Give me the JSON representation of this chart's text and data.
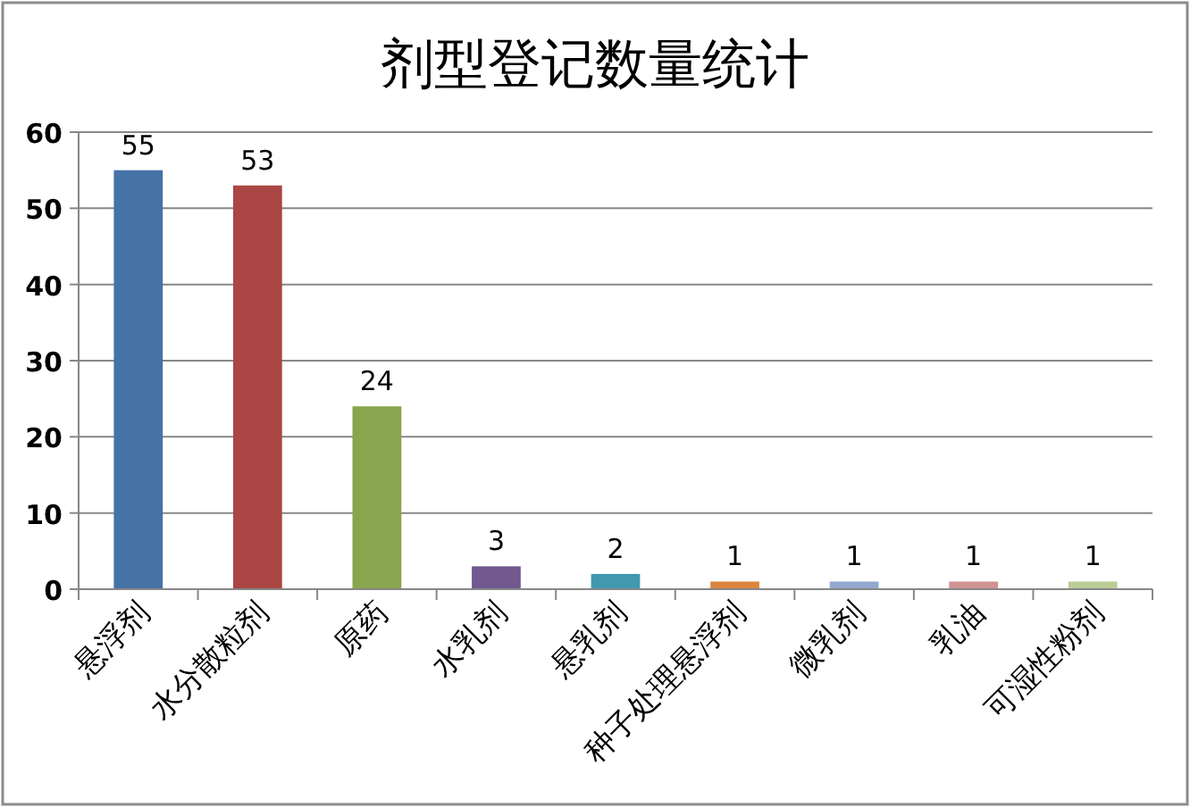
{
  "chart_data": {
    "type": "bar",
    "title": "剂型登记数量统计",
    "categories": [
      "悬浮剂",
      "水分散粒剂",
      "原药",
      "水乳剂",
      "悬乳剂",
      "种子处理悬浮剂",
      "微乳剂",
      "乳油",
      "可湿性粉剂"
    ],
    "values": [
      55,
      53,
      24,
      3,
      2,
      1,
      1,
      1,
      1
    ],
    "colors": [
      "#4572a7",
      "#aa4643",
      "#89a54e",
      "#71588f",
      "#4198af",
      "#db843d",
      "#93a9cf",
      "#d19392",
      "#b9cd96"
    ],
    "ylim": [
      0,
      60
    ],
    "yticks": [
      0,
      10,
      20,
      30,
      40,
      50,
      60
    ],
    "grid": "y",
    "data_labels": true
  }
}
